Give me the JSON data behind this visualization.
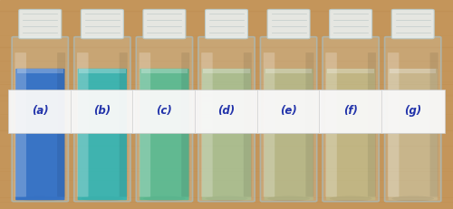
{
  "figsize": [
    5.0,
    2.31
  ],
  "dpi": 100,
  "bg_color": "#c4955a",
  "vials": [
    {
      "label": "(a)",
      "liquid_color": "#1a6ad8",
      "liquid_alpha": 0.82
    },
    {
      "label": "(b)",
      "liquid_color": "#18b8c0",
      "liquid_alpha": 0.78
    },
    {
      "label": "(c)",
      "liquid_color": "#30c4a0",
      "liquid_alpha": 0.68
    },
    {
      "label": "(d)",
      "liquid_color": "#98cca0",
      "liquid_alpha": 0.6
    },
    {
      "label": "(e)",
      "liquid_color": "#a8c89a",
      "liquid_alpha": 0.5
    },
    {
      "label": "(f)",
      "liquid_color": "#b8cc98",
      "liquid_alpha": 0.42
    },
    {
      "label": "(g)",
      "liquid_color": "#c8e0c8",
      "liquid_alpha": 0.28
    }
  ],
  "vial_facecolor": "#ddeeed",
  "vial_glass_alpha": 0.18,
  "vial_border_color": "#aabbbb",
  "cap_color": "#e8eeee",
  "cap_edge_color": "#bbcccc",
  "label_bg": "#f8f8f8",
  "label_text_color": "#2233aa",
  "label_fontsize": 8.5,
  "wood_grain_color": "#b88040"
}
